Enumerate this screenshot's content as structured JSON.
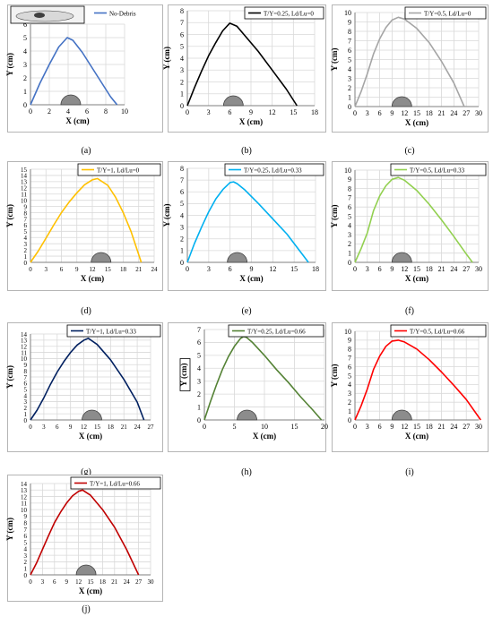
{
  "chart_data": [
    {
      "id": "a",
      "caption": "(a)",
      "type": "line",
      "series": [
        {
          "name": "No-Debris",
          "color": "#4472C4",
          "x": [
            0,
            1,
            2,
            3,
            3.9,
            4.5,
            5.5,
            6.5,
            7.5,
            8.5,
            9.2
          ],
          "y": [
            0,
            1.6,
            3.0,
            4.3,
            5.0,
            4.8,
            3.9,
            2.8,
            1.7,
            0.6,
            0
          ]
        }
      ],
      "xlabel": "X (cm)",
      "ylabel": "Y (cm)",
      "xlim": [
        0,
        10
      ],
      "ylim": [
        0,
        6
      ],
      "xticks": [
        0,
        2,
        4,
        6,
        8,
        10
      ],
      "yticks": [
        0,
        1,
        2,
        3,
        4,
        5,
        6
      ],
      "legend": "top-right",
      "grid": true,
      "inset_sketch": true
    },
    {
      "id": "b",
      "caption": "(b)",
      "type": "line",
      "series": [
        {
          "name": "T/Y=0.25, Ld/Lu=0",
          "color": "#000000",
          "x": [
            0,
            1,
            2,
            3,
            4,
            5,
            6,
            7,
            8,
            10,
            12,
            14,
            15.5
          ],
          "y": [
            0,
            1.5,
            2.9,
            4.2,
            5.3,
            6.3,
            6.95,
            6.7,
            6.0,
            4.6,
            3.0,
            1.4,
            0
          ]
        }
      ],
      "xlabel": "X (cm)",
      "ylabel": "Y (cm)",
      "xlim": [
        0,
        18
      ],
      "ylim": [
        0,
        8
      ],
      "xticks": [
        0,
        3,
        6,
        9,
        12,
        15,
        18
      ],
      "yticks": [
        0,
        1,
        2,
        3,
        4,
        5,
        6,
        7,
        8
      ],
      "legend": "top-right",
      "grid": true
    },
    {
      "id": "c",
      "caption": "(c)",
      "type": "line",
      "series": [
        {
          "name": "T/Y=0.5, Ld/Lu=0",
          "color": "#A5A5A5",
          "x": [
            0,
            1.5,
            3,
            4.5,
            6,
            7.5,
            9,
            10.5,
            12,
            15,
            18,
            21,
            24,
            26.5
          ],
          "y": [
            0,
            1.6,
            3.5,
            5.6,
            7.2,
            8.4,
            9.2,
            9.5,
            9.3,
            8.3,
            6.8,
            4.8,
            2.5,
            0
          ]
        }
      ],
      "xlabel": "X (cm)",
      "ylabel": "Y (cm)",
      "xlim": [
        0,
        30
      ],
      "ylim": [
        0,
        10
      ],
      "xticks": [
        0,
        3,
        6,
        9,
        12,
        15,
        18,
        21,
        24,
        27,
        30
      ],
      "yticks": [
        0,
        1,
        2,
        3,
        4,
        5,
        6,
        7,
        8,
        9,
        10
      ],
      "legend": "top-right",
      "grid": true
    },
    {
      "id": "d",
      "caption": "(d)",
      "type": "line",
      "series": [
        {
          "name": "T/Y=1, Ld/Lu=0",
          "color": "#FFC000",
          "x": [
            0,
            1.5,
            3,
            4.5,
            6,
            7.5,
            9,
            10.5,
            12,
            13,
            15,
            16.5,
            18,
            19.5,
            21.5
          ],
          "y": [
            0,
            1.8,
            3.9,
            6.0,
            8.0,
            9.7,
            11.2,
            12.5,
            13.3,
            13.5,
            12.4,
            10.5,
            8.0,
            5.0,
            0
          ]
        }
      ],
      "xlabel": "X (cm)",
      "ylabel": "Y (cm)",
      "xlim": [
        0,
        24
      ],
      "ylim": [
        0,
        15
      ],
      "xticks": [
        0,
        3,
        6,
        9,
        12,
        15,
        18,
        21,
        24
      ],
      "yticks": [
        0,
        1,
        2,
        3,
        4,
        5,
        6,
        7,
        8,
        9,
        10,
        11,
        12,
        13,
        14,
        15
      ],
      "legend": "top-right",
      "grid": true
    },
    {
      "id": "e",
      "caption": "(e)",
      "type": "line",
      "series": [
        {
          "name": "T/Y=0.25, Ld/Lu=0.33",
          "color": "#00B0F0",
          "x": [
            0,
            1,
            2,
            3,
            4,
            5,
            6,
            6.5,
            7,
            8,
            10,
            12,
            14,
            17
          ],
          "y": [
            0,
            1.6,
            3.0,
            4.3,
            5.4,
            6.2,
            6.8,
            6.85,
            6.7,
            6.2,
            5.0,
            3.7,
            2.4,
            0
          ]
        }
      ],
      "xlabel": "X (cm)",
      "ylabel": "Y (cm)",
      "xlim": [
        0,
        18
      ],
      "ylim": [
        0,
        8
      ],
      "xticks": [
        0,
        3,
        6,
        9,
        12,
        15,
        18
      ],
      "yticks": [
        0,
        1,
        2,
        3,
        4,
        5,
        6,
        7,
        8
      ],
      "legend": "top-right",
      "grid": true
    },
    {
      "id": "f",
      "caption": "(f)",
      "type": "line",
      "series": [
        {
          "name": "T/Y=0.5, Ld/Lu=0.33",
          "color": "#92D050",
          "x": [
            0,
            1.5,
            3,
            4.5,
            6,
            7.5,
            9,
            10.5,
            12,
            15,
            18,
            21,
            24,
            27,
            28.5
          ],
          "y": [
            0,
            1.5,
            3.2,
            5.6,
            7.2,
            8.3,
            9.0,
            9.2,
            8.9,
            7.8,
            6.3,
            4.6,
            2.8,
            0.9,
            0
          ]
        }
      ],
      "xlabel": "X (cm)",
      "ylabel": "Y (cm)",
      "xlim": [
        0,
        30
      ],
      "ylim": [
        0,
        10
      ],
      "xticks": [
        0,
        3,
        6,
        9,
        12,
        15,
        18,
        21,
        24,
        27,
        30
      ],
      "yticks": [
        0,
        1,
        2,
        3,
        4,
        5,
        6,
        7,
        8,
        9,
        10
      ],
      "legend": "top-right",
      "grid": true
    },
    {
      "id": "g",
      "caption": "(g)",
      "type": "line",
      "series": [
        {
          "name": "T/Y=1, Ld/Lu=0.33",
          "color": "#002060",
          "x": [
            0,
            1.5,
            3,
            4.5,
            6,
            7.5,
            9,
            10.5,
            12,
            13,
            15,
            18,
            21,
            24,
            25.5
          ],
          "y": [
            0,
            1.6,
            3.6,
            5.8,
            7.8,
            9.5,
            11.0,
            12.2,
            13.0,
            13.3,
            12.3,
            9.8,
            6.6,
            2.9,
            0
          ]
        }
      ],
      "xlabel": "X (cm)",
      "ylabel": "Y (cm)",
      "xlim": [
        0,
        27
      ],
      "ylim": [
        0,
        14
      ],
      "xticks": [
        0,
        3,
        6,
        9,
        12,
        15,
        18,
        21,
        24,
        27
      ],
      "yticks": [
        0,
        1,
        2,
        3,
        4,
        5,
        6,
        7,
        8,
        9,
        10,
        11,
        12,
        13,
        14
      ],
      "legend": "top-right",
      "grid": true
    },
    {
      "id": "h",
      "caption": "(h)",
      "type": "line",
      "series": [
        {
          "name": "T/Y=0.25, Ld/Lu=0.66",
          "color": "#548235",
          "x": [
            0,
            1,
            2,
            3,
            4,
            5,
            6,
            6.5,
            7,
            8,
            10,
            12,
            14,
            16,
            18,
            19.5
          ],
          "y": [
            0,
            1.4,
            2.7,
            3.9,
            4.9,
            5.7,
            6.3,
            6.45,
            6.4,
            6.0,
            5.0,
            3.9,
            2.9,
            1.8,
            0.8,
            0
          ]
        }
      ],
      "xlabel": "X (cm)",
      "ylabel": "Y (cm)",
      "xlim": [
        0,
        20
      ],
      "ylim": [
        0,
        7
      ],
      "xticks": [
        0,
        5,
        10,
        15,
        20
      ],
      "yticks": [
        0,
        1,
        2,
        3,
        4,
        5,
        6,
        7
      ],
      "legend": "top-right",
      "grid": true
    },
    {
      "id": "i",
      "caption": "(i)",
      "type": "line",
      "series": [
        {
          "name": "T/Y=0.5, Ld/Lu=0.66",
          "color": "#FF0000",
          "x": [
            0,
            1.5,
            3,
            4.5,
            6,
            7.5,
            9,
            10.5,
            12,
            15,
            18,
            21,
            24,
            27,
            30.5
          ],
          "y": [
            0,
            1.6,
            3.5,
            5.7,
            7.2,
            8.3,
            8.9,
            9.0,
            8.8,
            8.0,
            6.8,
            5.4,
            3.9,
            2.3,
            0
          ]
        }
      ],
      "xlabel": "X (cm)",
      "ylabel": "Y (cm)",
      "xlim": [
        0,
        30
      ],
      "ylim": [
        0,
        10
      ],
      "xticks": [
        0,
        3,
        6,
        9,
        12,
        15,
        18,
        21,
        24,
        27,
        30
      ],
      "yticks": [
        0,
        1,
        2,
        3,
        4,
        5,
        6,
        7,
        8,
        9,
        10
      ],
      "legend": "top-right",
      "grid": true
    },
    {
      "id": "j",
      "caption": "(j)",
      "type": "line",
      "series": [
        {
          "name": "T/Y=1, Ld/Lu=0.66",
          "color": "#C00000",
          "x": [
            0,
            1.5,
            3,
            4.5,
            6,
            7.5,
            9,
            10.5,
            12,
            13,
            15,
            18,
            21,
            24,
            27
          ],
          "y": [
            0,
            1.8,
            3.9,
            6.0,
            8.0,
            9.6,
            11.0,
            12.1,
            12.8,
            13.0,
            12.2,
            10.0,
            7.3,
            3.9,
            0
          ]
        }
      ],
      "xlabel": "X (cm)",
      "ylabel": "Y (cm)",
      "xlim": [
        0,
        30
      ],
      "ylim": [
        0,
        14
      ],
      "xticks": [
        0,
        3,
        6,
        9,
        12,
        15,
        18,
        21,
        24,
        27,
        30
      ],
      "yticks": [
        0,
        1,
        2,
        3,
        4,
        5,
        6,
        7,
        8,
        9,
        10,
        11,
        12,
        13,
        14
      ],
      "legend": "top-right",
      "grid": true
    }
  ]
}
